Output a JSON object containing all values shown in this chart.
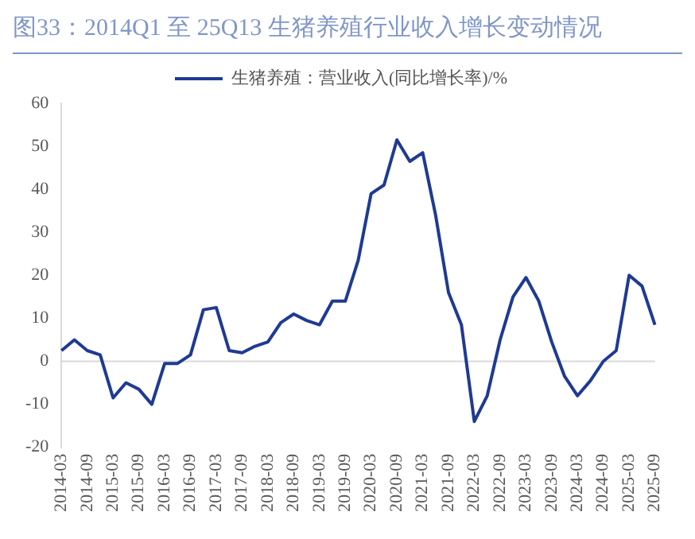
{
  "chart_data": {
    "type": "line",
    "title": "图33：2014Q1 至 25Q13 生猪养殖行业收入增长变动情况",
    "categories": [
      "2014-03",
      null,
      "2014-09",
      null,
      "2015-03",
      null,
      "2015-09",
      null,
      "2016-03",
      null,
      "2016-09",
      null,
      "2017-03",
      null,
      "2017-09",
      null,
      "2018-03",
      null,
      "2018-09",
      null,
      "2019-03",
      null,
      "2019-09",
      null,
      "2020-03",
      null,
      "2020-09",
      null,
      "2021-03",
      null,
      "2021-09",
      null,
      "2022-03",
      null,
      "2022-09",
      null,
      "2023-03",
      null,
      "2023-09",
      null,
      "2024-03",
      null,
      "2024-09",
      null,
      "2025-03",
      null,
      "2025-09"
    ],
    "series": [
      {
        "name": "生猪养殖：营业收入(同比增长率)/%",
        "color": "#1f3a93",
        "values": [
          2.5,
          5,
          2.5,
          1.5,
          -8.5,
          -5,
          -6.5,
          -10,
          -0.5,
          -0.5,
          1.5,
          12,
          12.5,
          2.5,
          2,
          3.5,
          4.5,
          9,
          11,
          9.5,
          8.5,
          14,
          14,
          23.5,
          39,
          41,
          51.5,
          46.5,
          48.5,
          34,
          16,
          8.5,
          -14,
          -8,
          5,
          15,
          19.5,
          14,
          4.5,
          -3.5,
          -8,
          -4.5,
          0,
          2.5,
          20,
          17.5,
          8.5
        ]
      }
    ],
    "ylim": [
      -20,
      60
    ],
    "yticks": [
      -20,
      -10,
      0,
      10,
      20,
      30,
      40,
      50,
      60
    ],
    "ref_lines": [
      {
        "axis": "y",
        "value": 0,
        "color": "#d9d9d9"
      }
    ],
    "grid": false,
    "legend": "top",
    "marker": "none",
    "line_style": "solid"
  }
}
